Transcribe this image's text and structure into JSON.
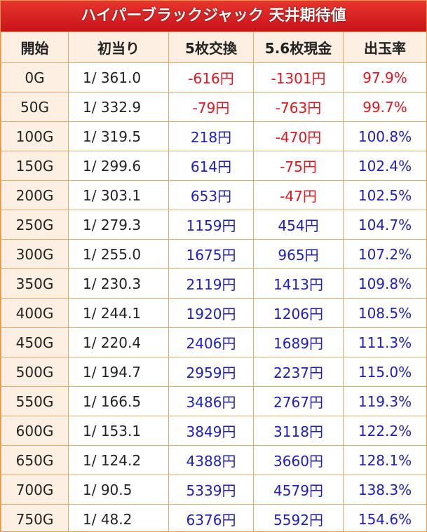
{
  "header": {
    "title": "ハイパーブラックジャック 天井期待値"
  },
  "palette": {
    "red": "#e8141b",
    "blue": "#1c1cc8"
  },
  "table": {
    "columns": [
      "開始",
      "初当り",
      "5枚交換",
      "5.6枚現金",
      "出玉率"
    ],
    "rows": [
      {
        "cells": [
          "0G",
          "1/ 361.0",
          "-616円",
          "-1301円",
          "97.9%"
        ],
        "colors": [
          "red",
          "red",
          "red"
        ]
      },
      {
        "cells": [
          "50G",
          "1/ 332.9",
          "-79円",
          "-763円",
          "99.7%"
        ],
        "colors": [
          "red",
          "red",
          "red"
        ]
      },
      {
        "cells": [
          "100G",
          "1/ 319.5",
          "218円",
          "-470円",
          "100.8%"
        ],
        "colors": [
          "blue",
          "red",
          "blue"
        ]
      },
      {
        "cells": [
          "150G",
          "1/ 299.6",
          "614円",
          "-75円",
          "102.4%"
        ],
        "colors": [
          "blue",
          "red",
          "blue"
        ]
      },
      {
        "cells": [
          "200G",
          "1/ 303.1",
          "653円",
          "-47円",
          "102.5%"
        ],
        "colors": [
          "blue",
          "red",
          "blue"
        ]
      },
      {
        "cells": [
          "250G",
          "1/ 279.3",
          "1159円",
          "454円",
          "104.7%"
        ],
        "colors": [
          "blue",
          "blue",
          "blue"
        ]
      },
      {
        "cells": [
          "300G",
          "1/ 255.0",
          "1675円",
          "965円",
          "107.2%"
        ],
        "colors": [
          "blue",
          "blue",
          "blue"
        ]
      },
      {
        "cells": [
          "350G",
          "1/ 230.3",
          "2119円",
          "1413円",
          "109.8%"
        ],
        "colors": [
          "blue",
          "blue",
          "blue"
        ]
      },
      {
        "cells": [
          "400G",
          "1/ 244.1",
          "1920円",
          "1206円",
          "108.5%"
        ],
        "colors": [
          "blue",
          "blue",
          "blue"
        ]
      },
      {
        "cells": [
          "450G",
          "1/ 220.4",
          "2406円",
          "1689円",
          "111.3%"
        ],
        "colors": [
          "blue",
          "blue",
          "blue"
        ]
      },
      {
        "cells": [
          "500G",
          "1/ 194.7",
          "2959円",
          "2237円",
          "115.0%"
        ],
        "colors": [
          "blue",
          "blue",
          "blue"
        ]
      },
      {
        "cells": [
          "550G",
          "1/ 166.5",
          "3486円",
          "2767円",
          "119.3%"
        ],
        "colors": [
          "blue",
          "blue",
          "blue"
        ]
      },
      {
        "cells": [
          "600G",
          "1/ 153.1",
          "3849円",
          "3118円",
          "122.2%"
        ],
        "colors": [
          "blue",
          "blue",
          "blue"
        ]
      },
      {
        "cells": [
          "650G",
          "1/ 124.2",
          "4388円",
          "3660円",
          "128.1%"
        ],
        "colors": [
          "blue",
          "blue",
          "blue"
        ]
      },
      {
        "cells": [
          "700G",
          "1/ 90.5",
          "5339円",
          "4579円",
          "138.3%"
        ],
        "colors": [
          "blue",
          "blue",
          "blue"
        ]
      },
      {
        "cells": [
          "750G",
          "1/ 48.2",
          "6376円",
          "5592円",
          "154.6%"
        ],
        "colors": [
          "blue",
          "blue",
          "blue"
        ]
      }
    ]
  }
}
